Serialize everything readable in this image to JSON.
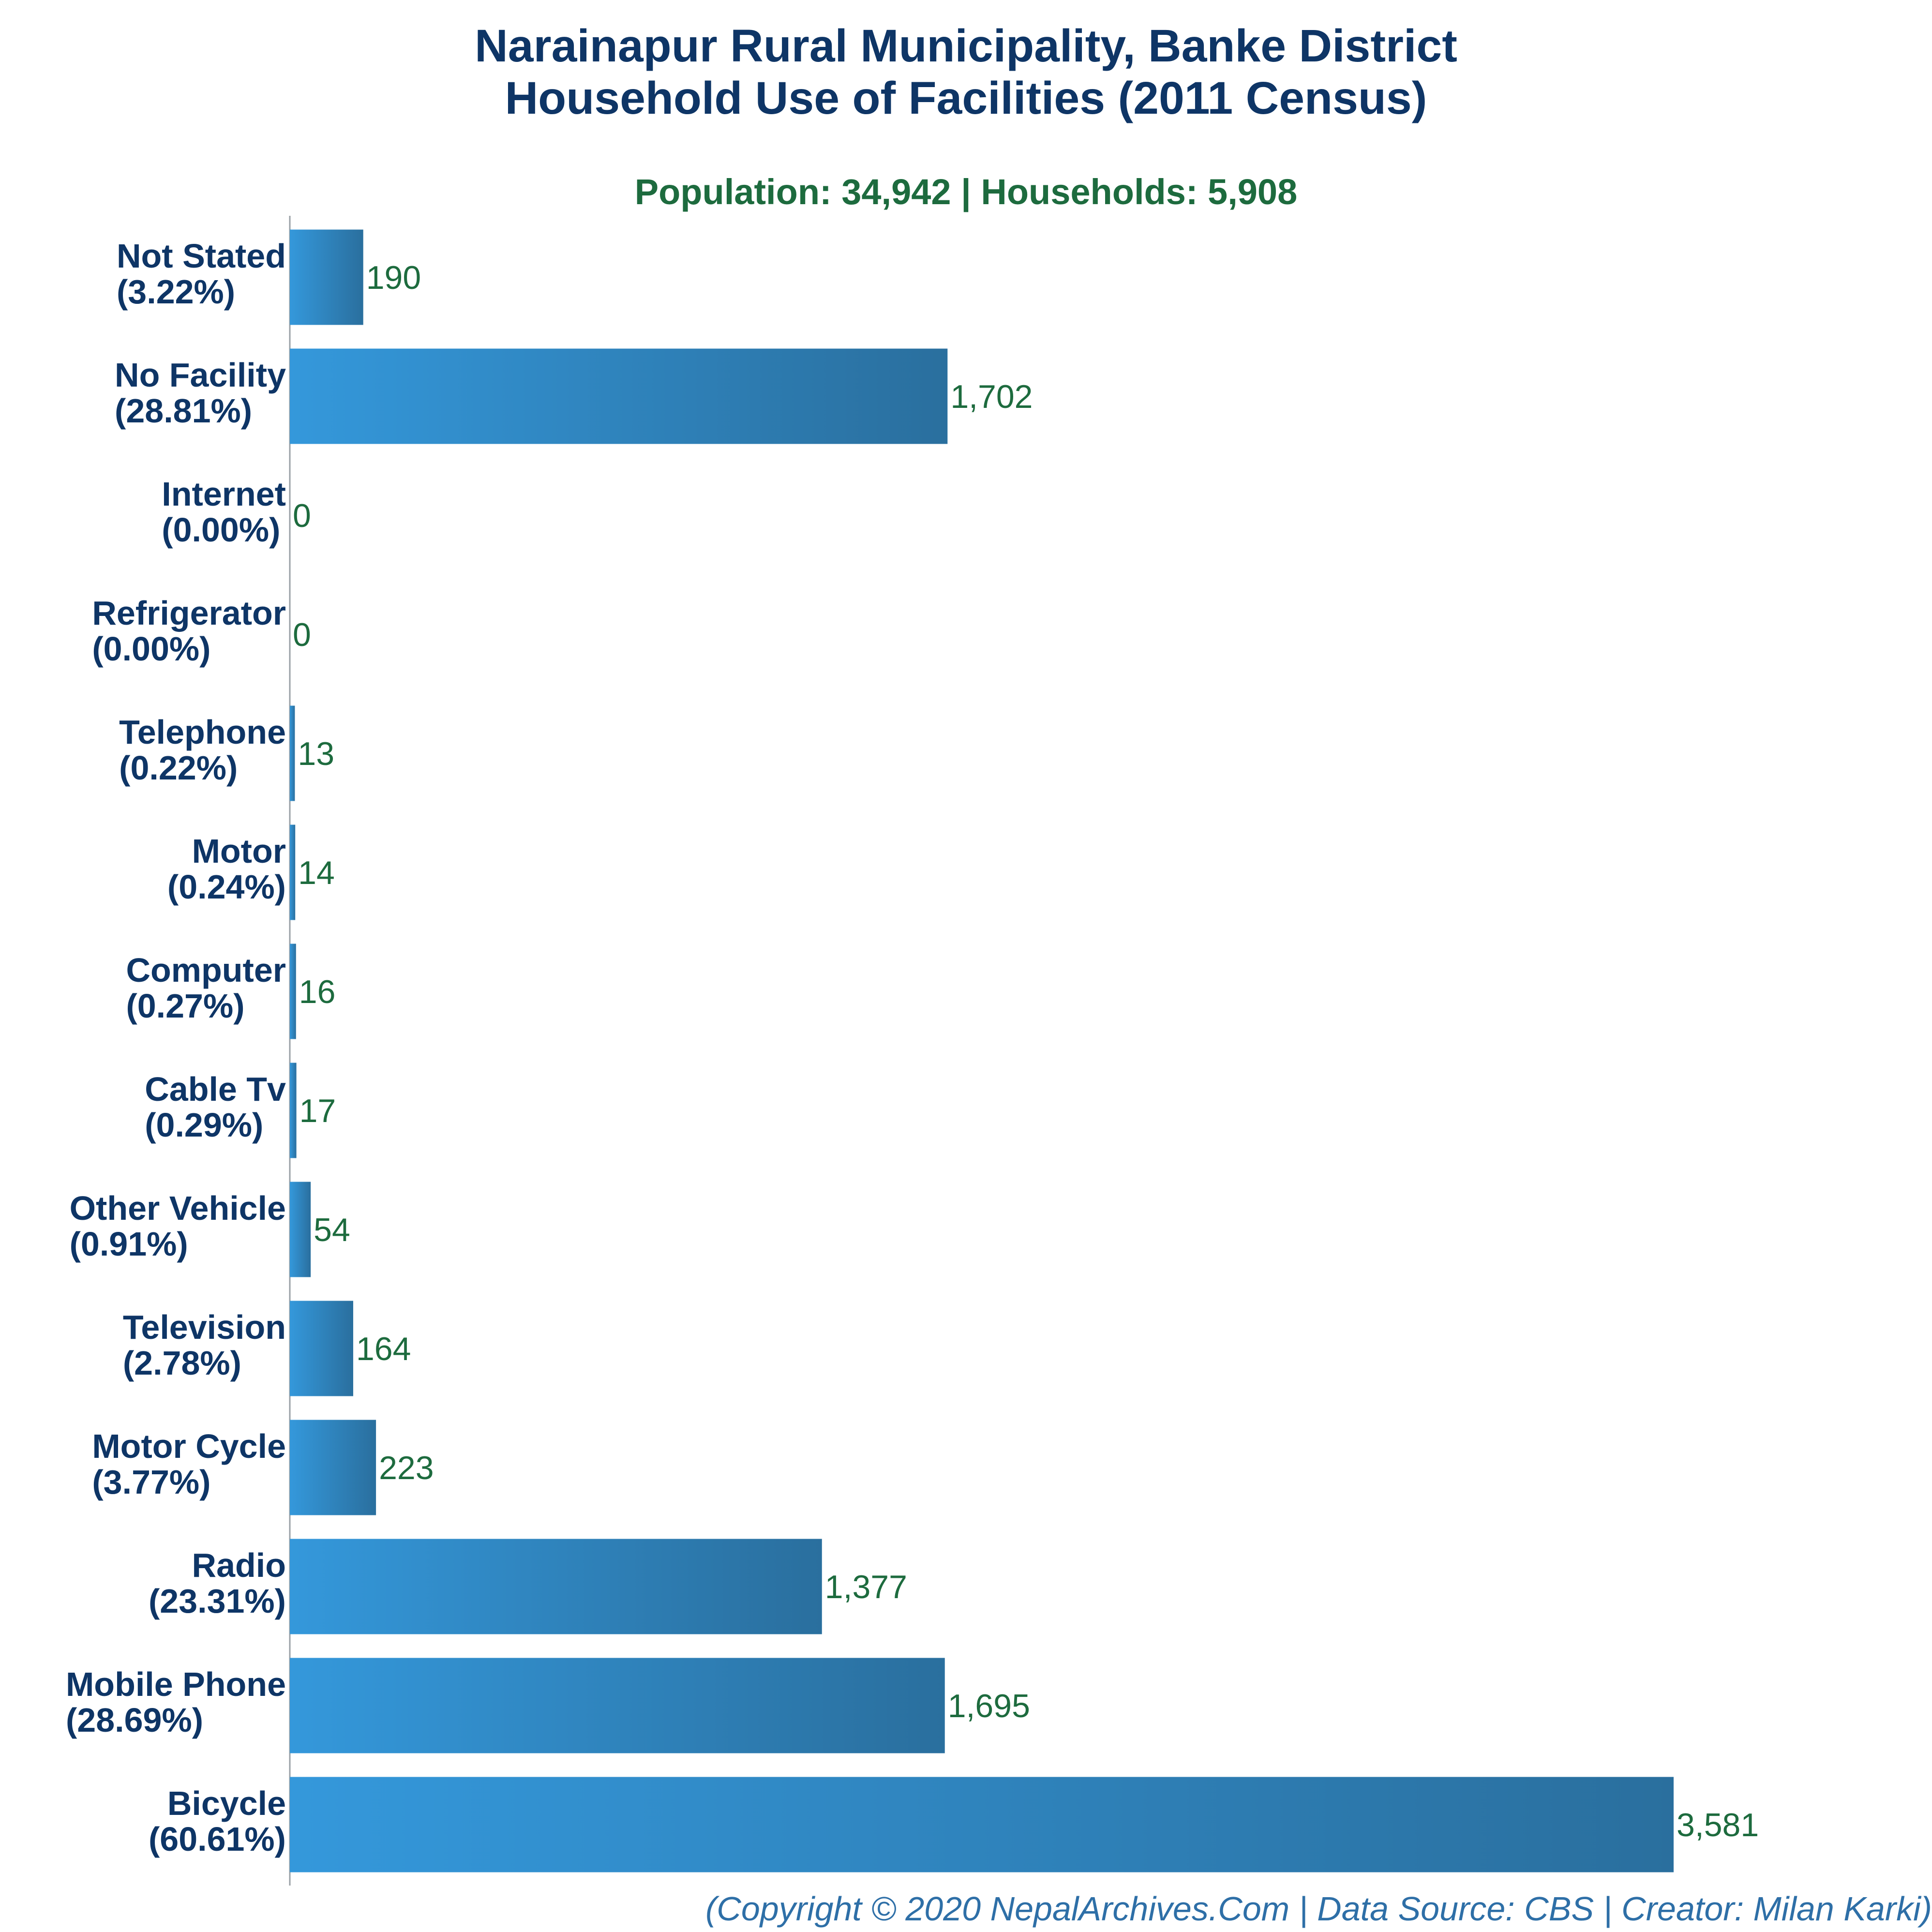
{
  "chart_data": {
    "type": "bar",
    "orientation": "horizontal",
    "title_line1": "Narainapur Rural Municipality, Banke District",
    "title_line2": "Household Use of Facilities (2011 Census)",
    "subtitle": "Population: 34,942 | Households: 5,908",
    "categories": [
      "Not Stated",
      "No Facility",
      "Internet",
      "Refrigerator",
      "Telephone",
      "Motor",
      "Computer",
      "Cable Tv",
      "Other Vehicle",
      "Television",
      "Motor Cycle",
      "Radio",
      "Mobile Phone",
      "Bicycle"
    ],
    "percent_labels": [
      "(3.22%)",
      "(28.81%)",
      "(0.00%)",
      "(0.00%)",
      "(0.22%)",
      "(0.24%)",
      "(0.27%)",
      "(0.29%)",
      "(0.91%)",
      "(2.78%)",
      "(3.77%)",
      "(23.31%)",
      "(28.69%)",
      "(60.61%)"
    ],
    "values": [
      190,
      1702,
      0,
      0,
      13,
      14,
      16,
      17,
      54,
      164,
      223,
      1377,
      1695,
      3581
    ],
    "value_labels": [
      "190",
      "1,702",
      "0",
      "0",
      "13",
      "14",
      "16",
      "17",
      "54",
      "164",
      "223",
      "1,377",
      "1,695",
      "3,581"
    ],
    "xlabel": "",
    "ylabel": "",
    "xlim": [
      0,
      3581
    ],
    "grid": false,
    "legend": "none",
    "colors": {
      "bar_light": "#3498db",
      "bar_dark": "#2a6f9e",
      "title": "#0e3566",
      "subtitle": "#1d6b3e",
      "value_label": "#1d6b3e",
      "footer": "#2e6fa7"
    }
  },
  "footer": "(Copyright © 2020 NepalArchives.Com | Data Source: CBS | Creator: Milan Karki)"
}
